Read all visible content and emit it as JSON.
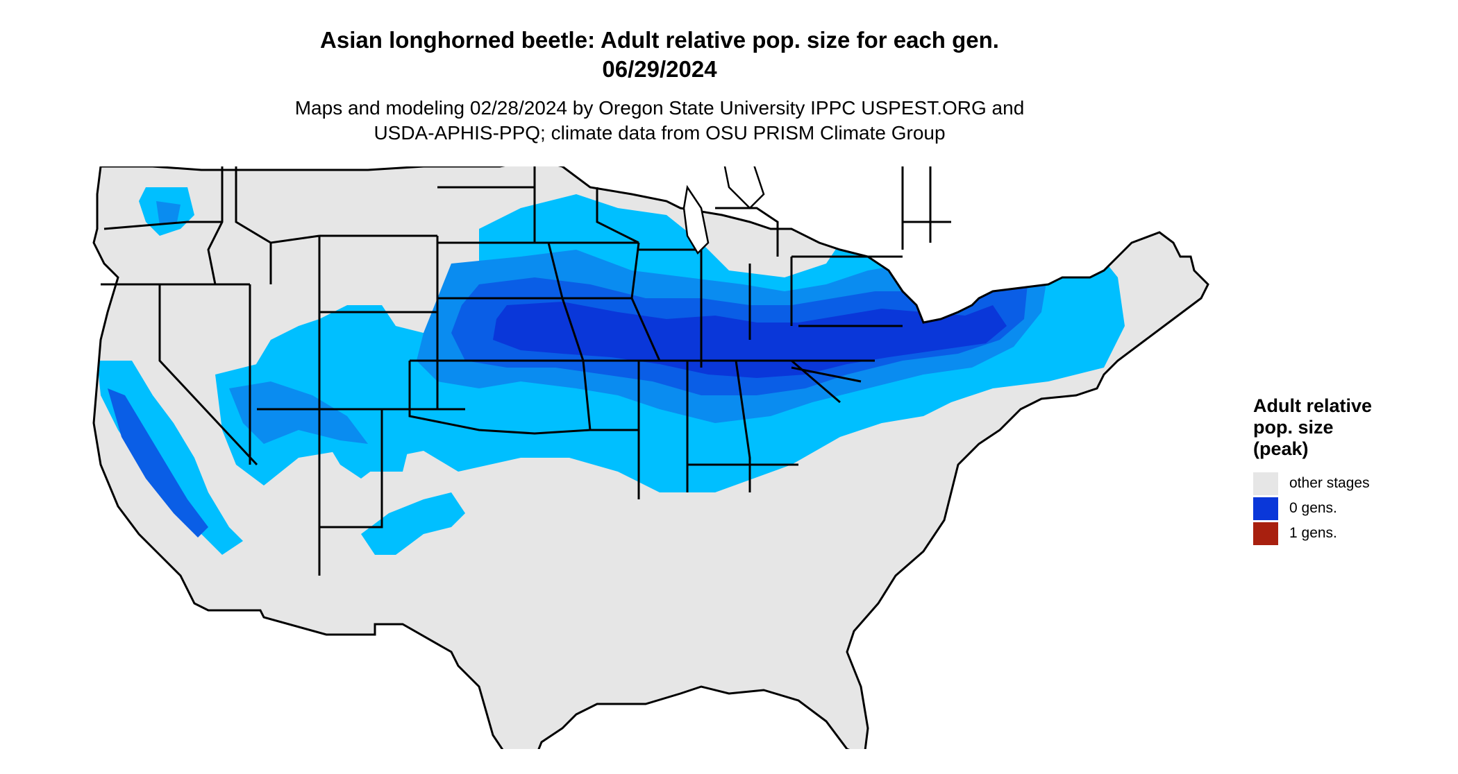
{
  "header": {
    "title_line1": "Asian longhorned beetle: Adult relative pop. size for each gen.",
    "title_line2": "06/29/2024",
    "subtitle_line1": "Maps and modeling 02/28/2024 by Oregon State University IPPC USPEST.ORG and",
    "subtitle_line2": "USDA-APHIS-PPQ; climate data from OSU PRISM Climate Group"
  },
  "legend": {
    "title_line1": "Adult relative",
    "title_line2": "pop. size",
    "title_line3": "(peak)",
    "items": [
      {
        "label": "other stages",
        "color": "#e6e6e6"
      },
      {
        "label": "0 gens.",
        "color": "#0a37d9"
      },
      {
        "label": "1 gens.",
        "color": "#a8200f"
      }
    ]
  },
  "colors": {
    "land": "#e6e6e6",
    "boundary": "#000000",
    "light_blue": "#00bfff",
    "mid_blue": "#0a8cf0",
    "blue": "#0a5ee6",
    "dark_blue": "#0a37d9"
  }
}
